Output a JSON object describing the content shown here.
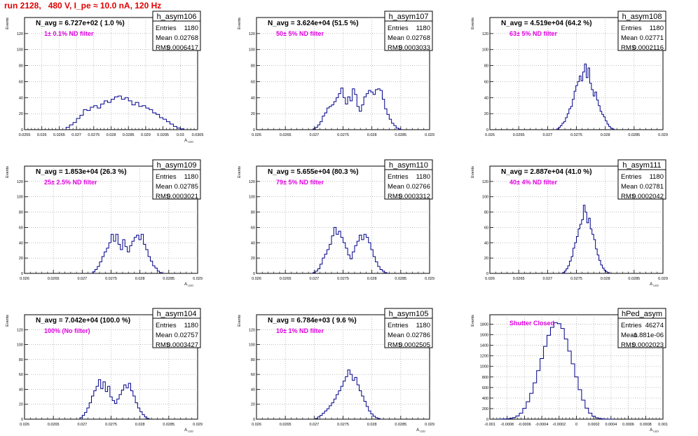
{
  "title": "run 2128,   480 V, I_pe ≈ 10.0 nA, 120 Hz",
  "colors": {
    "title": "#e00000",
    "annotation": "#e000e0",
    "histogram": "#00008b",
    "grid": "#999999"
  },
  "chart_data": [
    {
      "type": "histogram",
      "name": "h_asym106",
      "ylabel": "Events",
      "xlabel": "A_LED",
      "nlabel": "N_avg = 6.727e+02 ( 1.0 %)",
      "annotation": "1± 0.1% ND filter",
      "stats": [
        [
          "Entries",
          "1180"
        ],
        [
          "Mean",
          "0.02768"
        ],
        [
          "RMS",
          "0.0006417"
        ]
      ],
      "xlim": [
        0.0255,
        0.0305
      ],
      "ylim": [
        0,
        140
      ],
      "x_ticks": [
        "0.0255",
        "0.026",
        "0.0265",
        "0.027",
        "0.0275",
        "0.028",
        "0.0285",
        "0.029",
        "0.0295",
        "0.03",
        "0.0305"
      ],
      "y_ticks": [
        "0",
        "20",
        "40",
        "60",
        "80",
        "100",
        "120"
      ],
      "y_tick_values": [
        0,
        20,
        40,
        60,
        80,
        100,
        120
      ],
      "bin_start": 0.0267,
      "bin_width": 0.0001,
      "values": [
        3,
        6,
        9,
        14,
        18,
        25,
        24,
        28,
        30,
        27,
        32,
        36,
        34,
        38,
        41,
        42,
        38,
        40,
        36,
        31,
        34,
        29,
        30,
        27,
        25,
        21,
        19,
        15,
        13,
        10,
        7,
        4,
        2,
        1
      ]
    },
    {
      "type": "histogram",
      "name": "h_asym107",
      "ylabel": "Events",
      "xlabel": "",
      "nlabel": "N_avg = 3.624e+04 (51.5 %)",
      "annotation": "50± 5% ND filter",
      "stats": [
        [
          "Entries",
          "1180"
        ],
        [
          "Mean",
          "0.02768"
        ],
        [
          "RMS",
          "0.0003033"
        ]
      ],
      "xlim": [
        0.026,
        0.029
      ],
      "ylim": [
        0,
        140
      ],
      "x_ticks": [
        "0.026",
        "0.0265",
        "0.027",
        "0.0275",
        "0.028",
        "0.0285",
        "0.029"
      ],
      "y_ticks": [
        "0",
        "20",
        "40",
        "60",
        "80",
        "100",
        "120"
      ],
      "y_tick_values": [
        0,
        20,
        40,
        60,
        80,
        100,
        120
      ],
      "bin_start": 0.02698,
      "bin_width": 4e-05,
      "values": [
        1,
        3,
        6,
        10,
        17,
        21,
        27,
        29,
        31,
        35,
        40,
        45,
        52,
        40,
        32,
        41,
        36,
        51,
        44,
        29,
        23,
        31,
        41,
        45,
        49,
        47,
        44,
        50,
        51,
        49,
        38,
        26,
        19,
        13,
        8,
        5,
        2,
        1
      ]
    },
    {
      "type": "histogram",
      "name": "h_asym108",
      "ylabel": "Events",
      "xlabel": "",
      "nlabel": "N_avg = 4.519e+04 (64.2 %)",
      "annotation": "63± 5% ND filter",
      "stats": [
        [
          "Entries",
          "1180"
        ],
        [
          "Mean",
          "0.02771"
        ],
        [
          "RMS",
          "0.0002116"
        ]
      ],
      "xlim": [
        0.026,
        0.029
      ],
      "ylim": [
        0,
        140
      ],
      "x_ticks": [
        "0.026",
        "0.0265",
        "0.027",
        "0.0275",
        "0.028",
        "0.0285",
        "0.029"
      ],
      "y_ticks": [
        "0",
        "20",
        "40",
        "60",
        "80",
        "100",
        "120"
      ],
      "y_tick_values": [
        0,
        20,
        40,
        60,
        80,
        100,
        120
      ],
      "bin_start": 0.02716,
      "bin_width": 3e-05,
      "values": [
        1,
        3,
        5,
        8,
        10,
        15,
        20,
        26,
        29,
        38,
        48,
        55,
        60,
        67,
        61,
        72,
        82,
        65,
        77,
        58,
        50,
        42,
        47,
        37,
        30,
        23,
        19,
        16,
        11,
        7,
        4,
        2,
        1
      ]
    },
    {
      "type": "histogram",
      "name": "h_asym109",
      "ylabel": "Events",
      "xlabel": "A_LED",
      "nlabel": "N_avg = 1.853e+04 (26.3 %)",
      "annotation": "25± 2.5% ND filter",
      "stats": [
        [
          "Entries",
          "1180"
        ],
        [
          "Mean",
          "0.02785"
        ],
        [
          "RMS",
          "0.0003021"
        ]
      ],
      "xlim": [
        0.026,
        0.029
      ],
      "ylim": [
        0,
        140
      ],
      "x_ticks": [
        "0.026",
        "0.0265",
        "0.027",
        "0.0275",
        "0.028",
        "0.0285",
        "0.029"
      ],
      "y_ticks": [
        "0",
        "20",
        "40",
        "60",
        "80",
        "100",
        "120"
      ],
      "y_tick_values": [
        0,
        20,
        40,
        60,
        80,
        100,
        120
      ],
      "bin_start": 0.02718,
      "bin_width": 4e-05,
      "values": [
        2,
        5,
        9,
        15,
        22,
        28,
        33,
        40,
        51,
        42,
        51,
        38,
        31,
        44,
        35,
        28,
        36,
        42,
        47,
        50,
        44,
        51,
        38,
        31,
        22,
        16,
        10,
        7,
        3,
        1
      ]
    },
    {
      "type": "histogram",
      "name": "h_asym110",
      "ylabel": "Events",
      "xlabel": "",
      "nlabel": "N_avg = 5.655e+04 (80.3 %)",
      "annotation": "79± 5% ND filter",
      "stats": [
        [
          "Entries",
          "1180"
        ],
        [
          "Mean",
          "0.02766"
        ],
        [
          "RMS",
          "0.0003312"
        ]
      ],
      "xlim": [
        0.026,
        0.029
      ],
      "ylim": [
        0,
        140
      ],
      "x_ticks": [
        "0.026",
        "0.0265",
        "0.027",
        "0.0275",
        "0.028",
        "0.0285",
        "0.029"
      ],
      "y_ticks": [
        "0",
        "20",
        "40",
        "60",
        "80",
        "100",
        "120"
      ],
      "y_tick_values": [
        0,
        20,
        40,
        60,
        80,
        100,
        120
      ],
      "bin_start": 0.02698,
      "bin_width": 4e-05,
      "values": [
        1,
        3,
        6,
        12,
        20,
        25,
        31,
        38,
        49,
        60,
        51,
        55,
        47,
        40,
        33,
        24,
        19,
        28,
        36,
        42,
        50,
        44,
        51,
        47,
        40,
        31,
        22,
        15,
        9,
        5,
        3,
        1
      ]
    },
    {
      "type": "histogram",
      "name": "h_asym111",
      "ylabel": "Events",
      "xlabel": "A_LED",
      "nlabel": "N_avg = 2.887e+04 (41.0 %)",
      "annotation": "40± 4% ND filter",
      "stats": [
        [
          "Entries",
          "1180"
        ],
        [
          "Mean",
          "0.02781"
        ],
        [
          "RMS",
          "0.0002042"
        ]
      ],
      "xlim": [
        0.026,
        0.029
      ],
      "ylim": [
        0,
        140
      ],
      "x_ticks": [
        "0.026",
        "0.0265",
        "0.027",
        "0.0275",
        "0.028",
        "0.0285",
        "0.029"
      ],
      "y_ticks": [
        "0",
        "20",
        "40",
        "60",
        "80",
        "100",
        "120"
      ],
      "y_tick_values": [
        0,
        20,
        40,
        60,
        80,
        100,
        120
      ],
      "bin_start": 0.02726,
      "bin_width": 3e-05,
      "values": [
        1,
        3,
        6,
        10,
        16,
        22,
        33,
        40,
        48,
        58,
        64,
        70,
        89,
        80,
        66,
        72,
        58,
        51,
        44,
        32,
        24,
        17,
        11,
        7,
        4,
        2,
        1
      ]
    },
    {
      "type": "histogram",
      "name": "h_asym104",
      "ylabel": "Events",
      "xlabel": "A_LED",
      "nlabel": "N_avg = 7.042e+04 (100.0 %)",
      "annotation": "100% (No filter)",
      "stats": [
        [
          "Entries",
          "1180"
        ],
        [
          "Mean",
          "0.02757"
        ],
        [
          "RMS",
          "0.0003427"
        ]
      ],
      "xlim": [
        0.026,
        0.029
      ],
      "ylim": [
        0,
        140
      ],
      "x_ticks": [
        "0.026",
        "0.0265",
        "0.027",
        "0.0275",
        "0.028",
        "0.0285",
        "0.029"
      ],
      "y_ticks": [
        "0",
        "20",
        "40",
        "60",
        "80",
        "100",
        "120"
      ],
      "y_tick_values": [
        0,
        20,
        40,
        60,
        80,
        100,
        120
      ],
      "bin_start": 0.02696,
      "bin_width": 4e-05,
      "values": [
        2,
        5,
        9,
        15,
        22,
        31,
        38,
        44,
        53,
        41,
        50,
        37,
        44,
        30,
        25,
        21,
        27,
        33,
        39,
        46,
        42,
        48,
        38,
        31,
        22,
        15,
        10,
        6,
        3,
        1
      ]
    },
    {
      "type": "histogram",
      "name": "h_asym105",
      "ylabel": "Events",
      "xlabel": "A_LED",
      "nlabel": "N_avg = 6.784e+03 ( 9.6 %)",
      "annotation": "10± 1% ND filter",
      "stats": [
        [
          "Entries",
          "1180"
        ],
        [
          "Mean",
          "0.02786"
        ],
        [
          "RMS",
          "0.0002505"
        ]
      ],
      "xlim": [
        0.026,
        0.029
      ],
      "ylim": [
        0,
        140
      ],
      "x_ticks": [
        "0.026",
        "0.0265",
        "0.027",
        "0.0275",
        "0.028",
        "0.0285",
        "0.029"
      ],
      "y_ticks": [
        "0",
        "20",
        "40",
        "60",
        "80",
        "100",
        "120"
      ],
      "y_tick_values": [
        0,
        20,
        40,
        60,
        80,
        100,
        120
      ],
      "bin_start": 0.02702,
      "bin_width": 4e-05,
      "values": [
        1,
        3,
        5,
        8,
        11,
        14,
        18,
        22,
        27,
        33,
        38,
        44,
        51,
        57,
        66,
        60,
        52,
        56,
        46,
        38,
        31,
        24,
        17,
        11,
        7,
        4,
        2,
        1
      ]
    },
    {
      "type": "histogram",
      "name": "hPed_asym",
      "ylabel": "Events",
      "xlabel": "A_LED",
      "nlabel": "",
      "annotation": "Shutter Closed",
      "stats": [
        [
          "Entries",
          "46274"
        ],
        [
          "Mean",
          "-1.881e-06"
        ],
        [
          "RMS",
          "0.0002023"
        ]
      ],
      "xlim": [
        -0.001,
        0.001
      ],
      "ylim": [
        0,
        1980
      ],
      "x_ticks": [
        "-0.001",
        "-0.0008",
        "-0.0006",
        "-0.0004",
        "-0.0002",
        "0",
        "0.0002",
        "0.0004",
        "0.0006",
        "0.0008",
        "0.001"
      ],
      "y_ticks": [
        "0",
        "200",
        "400",
        "600",
        "800",
        "1000",
        "1200",
        "1400",
        "1600",
        "1800"
      ],
      "y_tick_values": [
        0,
        200,
        400,
        600,
        800,
        1000,
        1200,
        1400,
        1600,
        1800
      ],
      "bin_start": -0.0009,
      "bin_width": 4e-05,
      "values": [
        1,
        3,
        6,
        15,
        30,
        62,
        115,
        205,
        330,
        490,
        690,
        920,
        1150,
        1380,
        1590,
        1740,
        1830,
        1810,
        1720,
        1520,
        1290,
        1050,
        800,
        560,
        360,
        210,
        115,
        55,
        25,
        10,
        4,
        2,
        1
      ]
    }
  ]
}
